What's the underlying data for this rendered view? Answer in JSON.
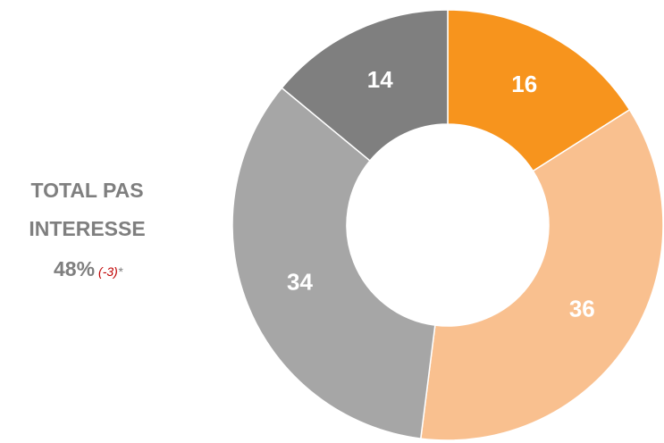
{
  "chart_data": {
    "type": "donut",
    "title": "TOTAL PAS INTERESSE",
    "total": "48%",
    "change": "(-3)",
    "footnote_mark": "*",
    "categories": [
      null,
      null,
      null,
      null
    ],
    "values": [
      16,
      36,
      34,
      14
    ],
    "colors": [
      "#f7941d",
      "#f9c08f",
      "#a6a6a6",
      "#7f7f7f"
    ]
  }
}
